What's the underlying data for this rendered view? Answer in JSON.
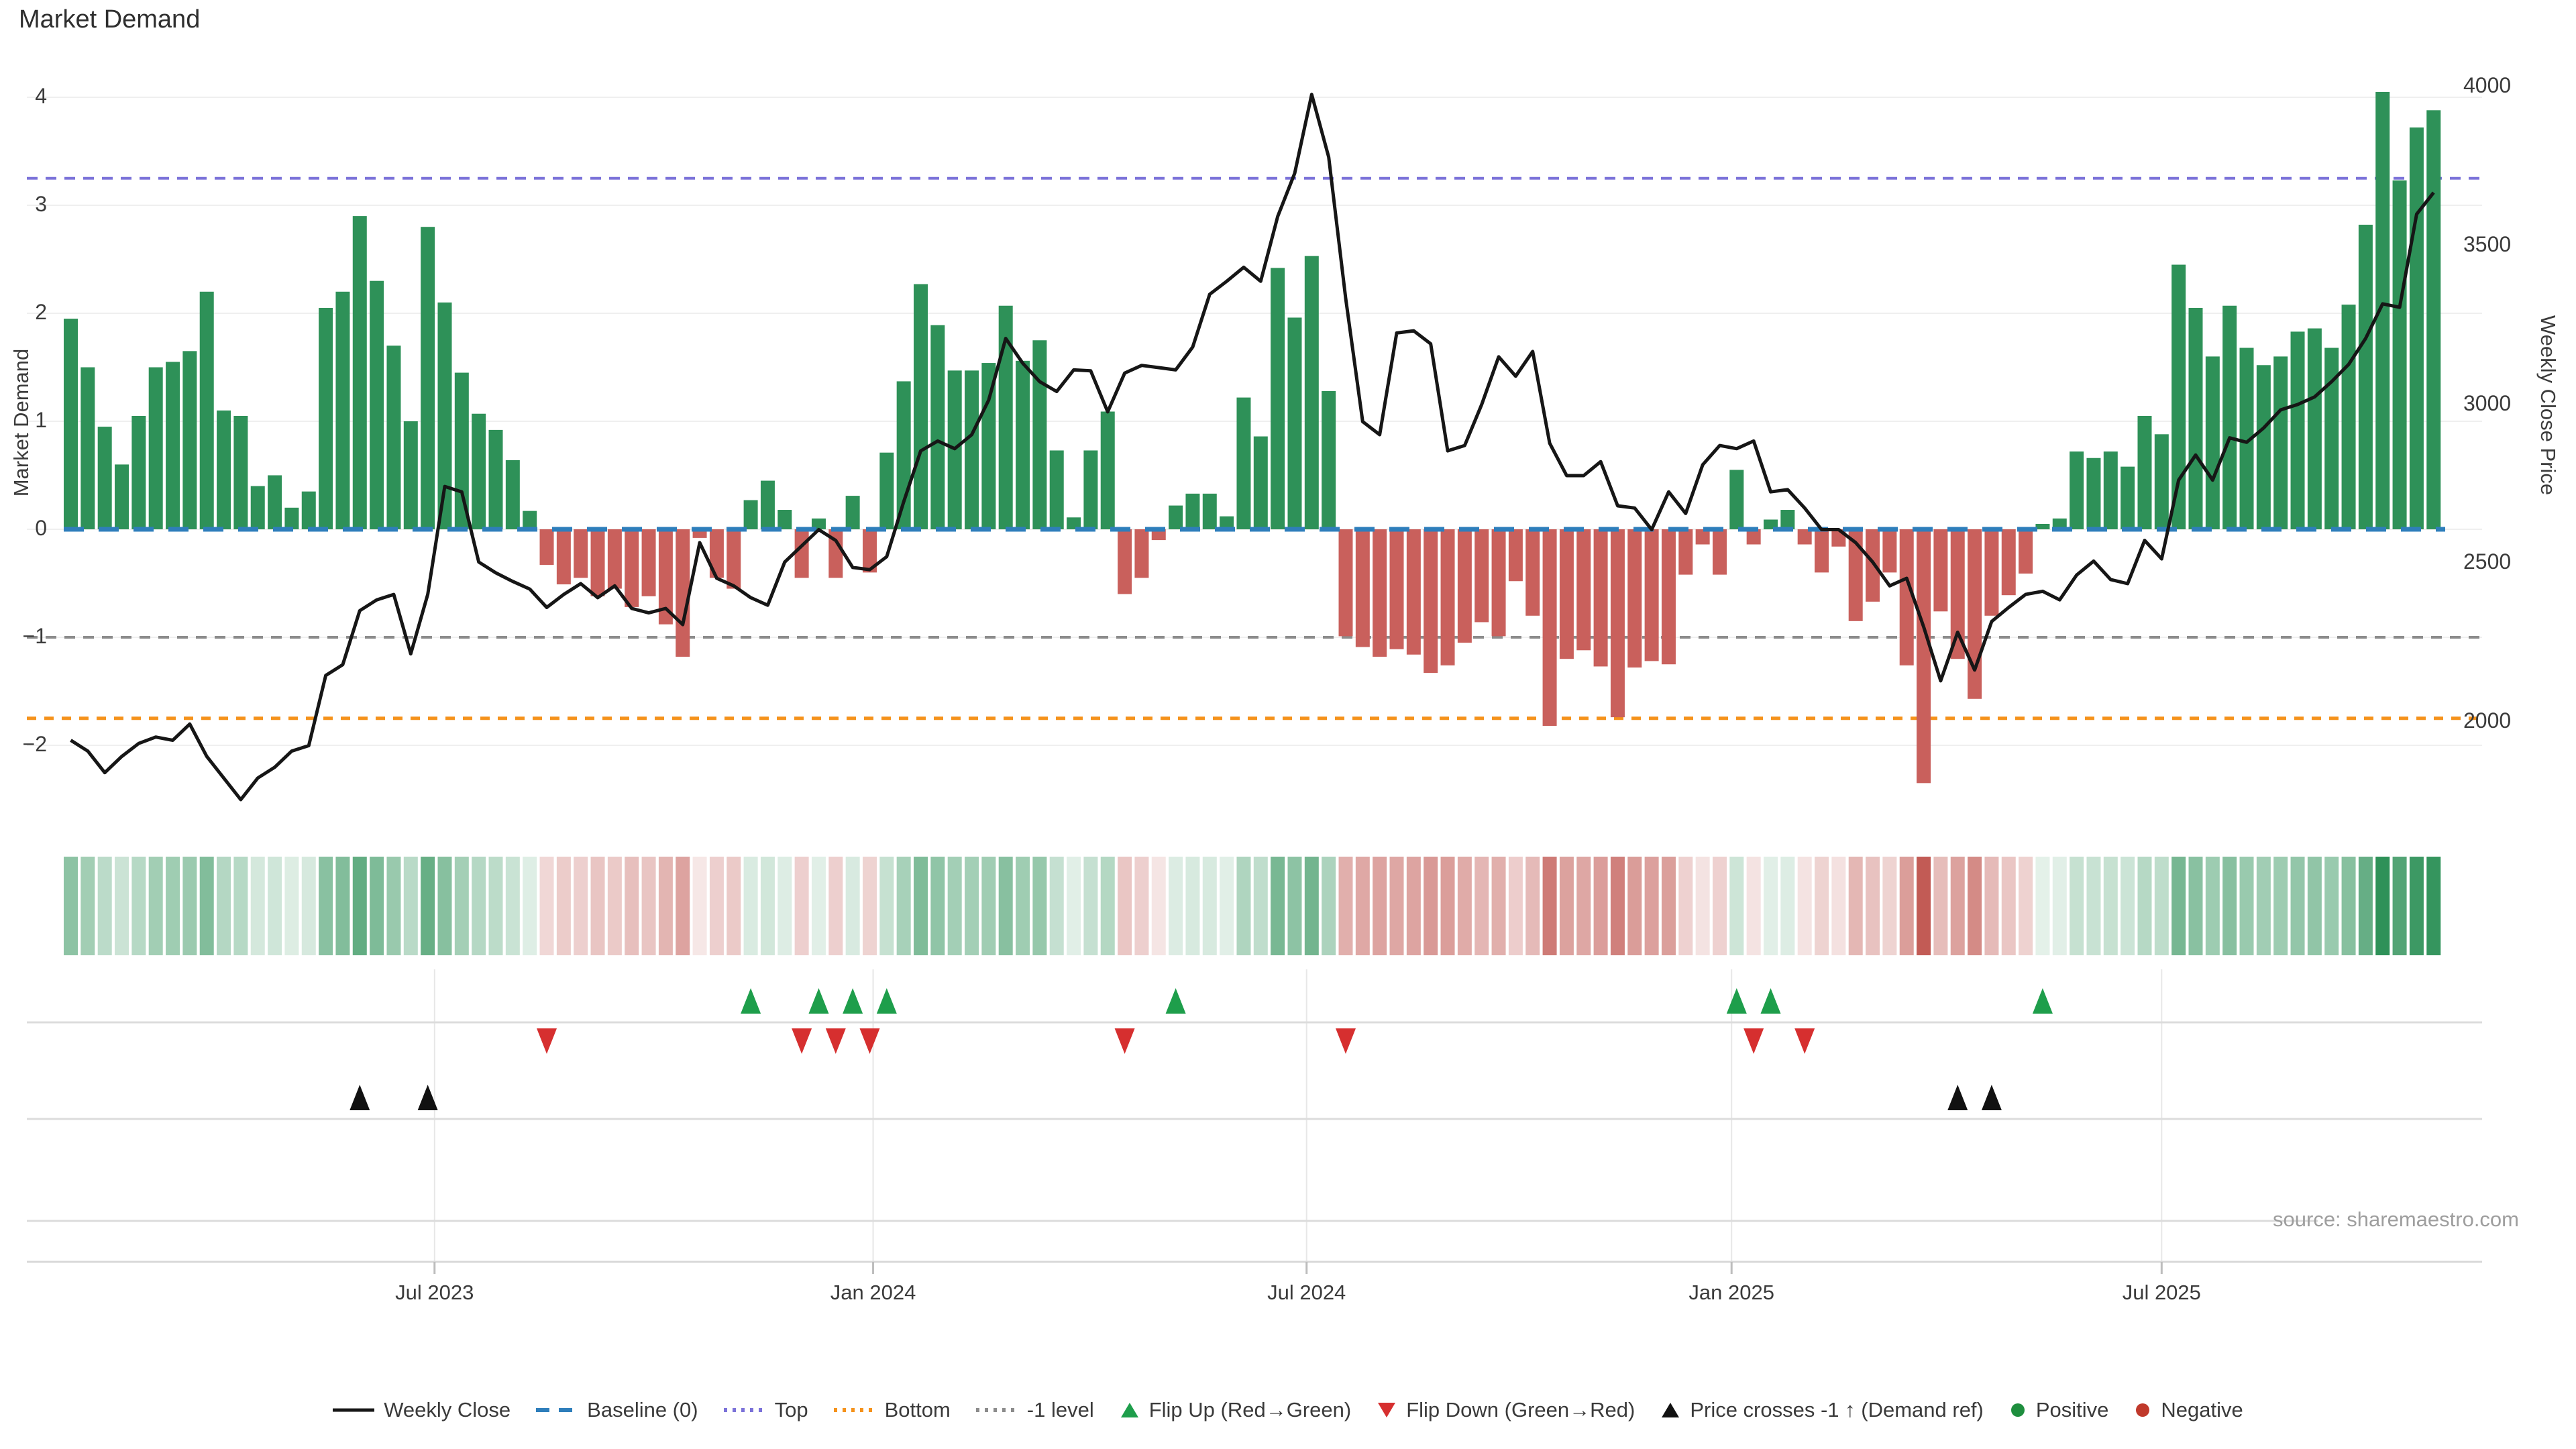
{
  "title": "Market Demand",
  "source_note": "source: sharemaestro.com",
  "axes": {
    "left": {
      "title": "Market Demand",
      "ticks": [
        "4",
        "3",
        "2",
        "1",
        "0",
        "−1",
        "−2"
      ],
      "tick_values": [
        4,
        3,
        2,
        1,
        0,
        -1,
        -2
      ],
      "range": [
        -2.6,
        4.3
      ]
    },
    "right": {
      "title": "Weekly Close Price",
      "ticks": [
        "4000",
        "3500",
        "3000",
        "2500",
        "2000"
      ],
      "tick_values": [
        4000,
        3500,
        3000,
        2500,
        2000
      ],
      "range": [
        1880,
        4100
      ]
    },
    "x": {
      "ticks": [
        "Jul 2023",
        "Jan 2024",
        "Jul 2024",
        "Jan 2025",
        "Jul 2025"
      ],
      "tick_week_positions": [
        21.4,
        47.2,
        72.7,
        97.7,
        123.0
      ]
    }
  },
  "legend": [
    {
      "label": "Weekly Close",
      "type": "line",
      "color": "#161616"
    },
    {
      "label": "Baseline (0)",
      "type": "dash",
      "color": "#2E7EBB"
    },
    {
      "label": "Top",
      "type": "dots",
      "color": "#7B72D9"
    },
    {
      "label": "Bottom",
      "type": "dots",
      "color": "#F5921B"
    },
    {
      "label": "-1 level",
      "type": "dots",
      "color": "#8C8C8C"
    },
    {
      "label": "Flip Up (Red→Green)",
      "type": "tri-up",
      "color": "#1E9E4B"
    },
    {
      "label": "Flip Down (Green→Red)",
      "type": "tri-down",
      "color": "#D62F2F"
    },
    {
      "label": "Price crosses -1 ↑ (Demand ref)",
      "type": "tri-up",
      "color": "#111111"
    },
    {
      "label": "Positive",
      "type": "dot",
      "color": "#1E8E3E"
    },
    {
      "label": "Negative",
      "type": "dot",
      "color": "#C0392B"
    }
  ],
  "colors": {
    "bar_positive": "#2E9158",
    "bar_negative": "#C9605C",
    "price_line": "#161616",
    "baseline": "#2E7EBB",
    "top_line": "#7B72D9",
    "bottom_line": "#F5921B",
    "minus_one_line": "#8C8C8C",
    "gridline": "#EFEFEF",
    "divider": "#DCDCDC",
    "vgrid": "#E7E7E7",
    "axis_line": "#D8D8D8",
    "heat_green": "#2E9158",
    "heat_red": "#C25B55"
  },
  "chart_data": {
    "type": "bar+line",
    "title": "Market Demand",
    "x": "week_index (weekly, ~Feb 2023 → Sep 2025)",
    "x_tick_labels": [
      "Jul 2023",
      "Jan 2024",
      "Jul 2024",
      "Jan 2025",
      "Jul 2025"
    ],
    "ylabel_left": "Market Demand",
    "ylabel_right": "Weekly Close Price",
    "ylim_left": [
      -2.6,
      4.3
    ],
    "ylim_right": [
      1880,
      4100
    ],
    "grid": true,
    "legend_position": "bottom",
    "thresholds": {
      "baseline": 0,
      "top": 3.25,
      "bottom": -1.75,
      "minus_one": -1
    },
    "series": [
      {
        "name": "Market Demand",
        "type": "bar",
        "values": [
          1.95,
          1.5,
          0.95,
          0.6,
          1.05,
          1.5,
          1.55,
          1.65,
          2.2,
          1.1,
          1.05,
          0.4,
          0.5,
          0.2,
          0.35,
          2.05,
          2.2,
          2.9,
          2.3,
          1.7,
          1.0,
          2.8,
          2.1,
          1.45,
          1.07,
          0.92,
          0.64,
          0.17,
          -0.33,
          -0.51,
          -0.45,
          -0.62,
          -0.55,
          -0.72,
          -0.62,
          -0.88,
          -1.18,
          -0.08,
          -0.45,
          -0.55,
          0.27,
          0.45,
          0.18,
          -0.45,
          0.1,
          -0.45,
          0.31,
          -0.4,
          0.71,
          1.37,
          2.27,
          1.89,
          1.47,
          1.47,
          1.54,
          2.07,
          1.56,
          1.75,
          0.73,
          0.11,
          0.73,
          1.09,
          -0.6,
          -0.45,
          -0.1,
          0.22,
          0.33,
          0.33,
          0.12,
          1.22,
          0.86,
          2.42,
          1.96,
          2.53,
          1.28,
          -0.99,
          -1.09,
          -1.18,
          -1.11,
          -1.16,
          -1.33,
          -1.26,
          -1.05,
          -0.86,
          -0.99,
          -0.48,
          -0.8,
          -1.82,
          -1.2,
          -1.12,
          -1.27,
          -1.74,
          -1.28,
          -1.22,
          -1.25,
          -0.42,
          -0.14,
          -0.42,
          0.55,
          -0.14,
          0.09,
          0.18,
          -0.14,
          -0.4,
          -0.16,
          -0.85,
          -0.67,
          -0.4,
          -1.26,
          -2.35,
          -0.76,
          -1.2,
          -1.57,
          -0.8,
          -0.61,
          -0.41,
          0.05,
          0.1,
          0.72,
          0.66,
          0.72,
          0.58,
          1.05,
          0.88,
          2.45,
          2.05,
          1.6,
          2.07,
          1.68,
          1.52,
          1.6,
          1.83,
          1.86,
          1.68,
          2.08,
          2.82,
          4.05,
          3.23,
          3.72,
          3.88
        ]
      },
      {
        "name": "Weekly Close",
        "type": "line",
        "values": [
          1942,
          1908,
          1840,
          1891,
          1932,
          1952,
          1942,
          1993,
          1891,
          1823,
          1755,
          1823,
          1857,
          1908,
          1925,
          2146,
          2180,
          2350,
          2384,
          2401,
          2214,
          2401,
          2741,
          2724,
          2503,
          2469,
          2442,
          2418,
          2360,
          2401,
          2435,
          2391,
          2428,
          2357,
          2343,
          2357,
          2306,
          2564,
          2452,
          2428,
          2391,
          2367,
          2503,
          2554,
          2605,
          2571,
          2486,
          2479,
          2520,
          2693,
          2853,
          2884,
          2860,
          2904,
          3013,
          3207,
          3129,
          3071,
          3040,
          3108,
          3105,
          2976,
          3098,
          3122,
          3115,
          3108,
          3180,
          3346,
          3387,
          3431,
          3387,
          3591,
          3727,
          3975,
          3778,
          3333,
          2945,
          2904,
          3224,
          3231,
          3190,
          2853,
          2870,
          2999,
          3149,
          3088,
          3166,
          2877,
          2775,
          2775,
          2819,
          2680,
          2673,
          2605,
          2724,
          2656,
          2809,
          2870,
          2860,
          2884,
          2724,
          2731,
          2673,
          2605,
          2605,
          2564,
          2503,
          2428,
          2452,
          2299,
          2129,
          2282,
          2163,
          2316,
          2360,
          2401,
          2411,
          2384,
          2462,
          2506,
          2448,
          2435,
          2571,
          2513,
          2761,
          2840,
          2761,
          2894,
          2880,
          2925,
          2982,
          2999,
          3023,
          3071,
          3125,
          3207,
          3316,
          3305,
          3598,
          3666
        ]
      }
    ],
    "markers": {
      "flip_up_weeks": [
        40,
        44,
        46,
        48,
        65,
        98,
        100,
        116
      ],
      "flip_down_weeks": [
        28,
        43,
        45,
        47,
        62,
        75,
        99,
        102
      ],
      "price_cross_weeks": [
        17,
        21,
        111,
        113
      ]
    },
    "heatmap": {
      "description": "Weekly demand intensity strip; green = positive, red = negative, opacity scales with magnitude",
      "max_positive": 4.05,
      "max_negative": -2.35
    }
  }
}
